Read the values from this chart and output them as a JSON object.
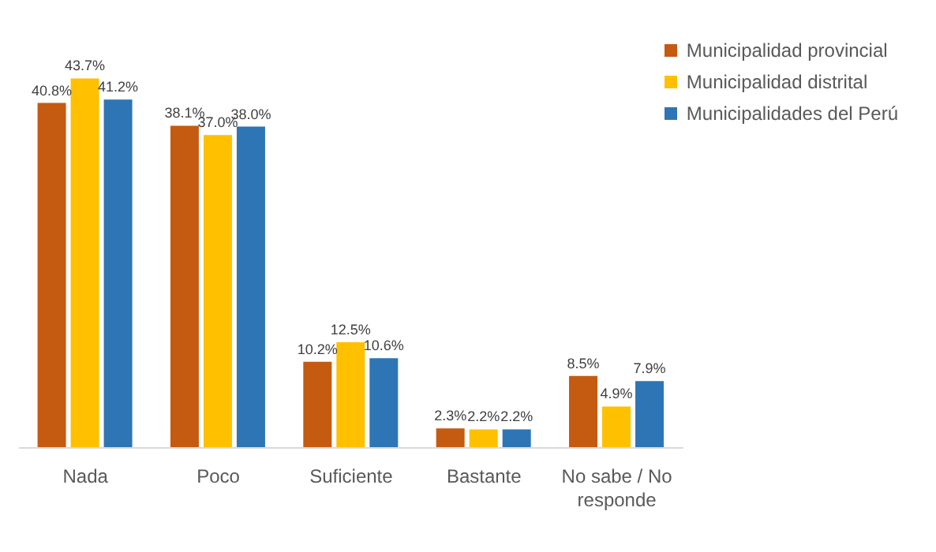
{
  "chart_data": {
    "type": "bar",
    "categories": [
      "Nada",
      "Poco",
      "Suficiente",
      "Bastante",
      "No sabe / No responde"
    ],
    "series": [
      {
        "name": "Municipalidad provincial",
        "color": "#c55a11",
        "values": [
          40.8,
          38.1,
          10.2,
          2.3,
          8.5
        ],
        "value_labels": [
          "40.8%",
          "38.1%",
          "10.2%",
          "2.3%",
          "8.5%"
        ]
      },
      {
        "name": "Municipalidad distrital",
        "color": "#ffc000",
        "values": [
          43.7,
          37.0,
          12.5,
          2.2,
          4.9
        ],
        "value_labels": [
          "43.7%",
          "37.0%",
          "12.5%",
          "2.2%",
          "4.9%"
        ]
      },
      {
        "name": "Municipalidades del Perú",
        "color": "#2e75b6",
        "values": [
          41.2,
          38.0,
          10.6,
          2.2,
          7.9
        ],
        "value_labels": [
          "41.2%",
          "38.0%",
          "10.6%",
          "2.2%",
          "7.9%"
        ]
      }
    ],
    "legend": "top right",
    "grid": false
  }
}
